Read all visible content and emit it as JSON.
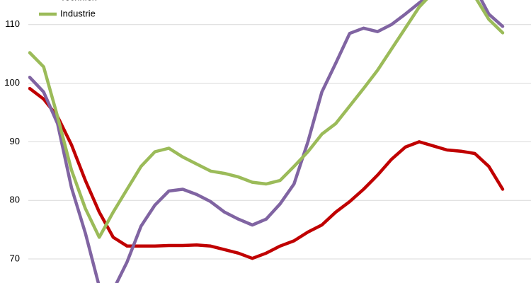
{
  "chart_data": {
    "type": "line",
    "ylim": [
      65.9,
      114.2
    ],
    "yticks": [
      70,
      80,
      90,
      100,
      110
    ],
    "grid": true,
    "legend": "top-left",
    "series": [
      {
        "color": "#c00000",
        "values": [
          99.1,
          97.3,
          94.3,
          89.5,
          83.4,
          78,
          73.7,
          72.2,
          72.2,
          72.2,
          72.3,
          72.3,
          72.4,
          72.2,
          71.6,
          71,
          70.1,
          71,
          72.2,
          73.1,
          74.6,
          75.8,
          78,
          79.8,
          81.9,
          84.3,
          87,
          89.1,
          90,
          89.3,
          88.6,
          88.4,
          88,
          85.8,
          81.9
        ]
      },
      {
        "name": "Techniek",
        "color": "#8064a2",
        "values": [
          101,
          98.5,
          93.1,
          82.2,
          74.4,
          65.3,
          64.7,
          69.5,
          75.6,
          79.2,
          81.6,
          81.9,
          81,
          79.8,
          78,
          76.8,
          75.8,
          76.8,
          79.4,
          82.8,
          90,
          98.5,
          103.4,
          108.5,
          109.4,
          108.8,
          110,
          111.8,
          113.7,
          115.5,
          118,
          118,
          116.3,
          111.8,
          109.7
        ]
      },
      {
        "name": "Industrie",
        "color": "#9bbb59",
        "values": [
          105.2,
          102.8,
          94.3,
          85.2,
          78.6,
          73.7,
          78,
          81.9,
          85.8,
          88.3,
          88.9,
          87.4,
          86.2,
          85,
          84.6,
          84,
          83.1,
          82.8,
          83.4,
          85.8,
          88.3,
          91.3,
          93.1,
          96.1,
          99.1,
          102.2,
          105.8,
          109.4,
          113,
          115.5,
          116.7,
          116.7,
          114.8,
          110.9,
          108.6
        ]
      }
    ]
  }
}
